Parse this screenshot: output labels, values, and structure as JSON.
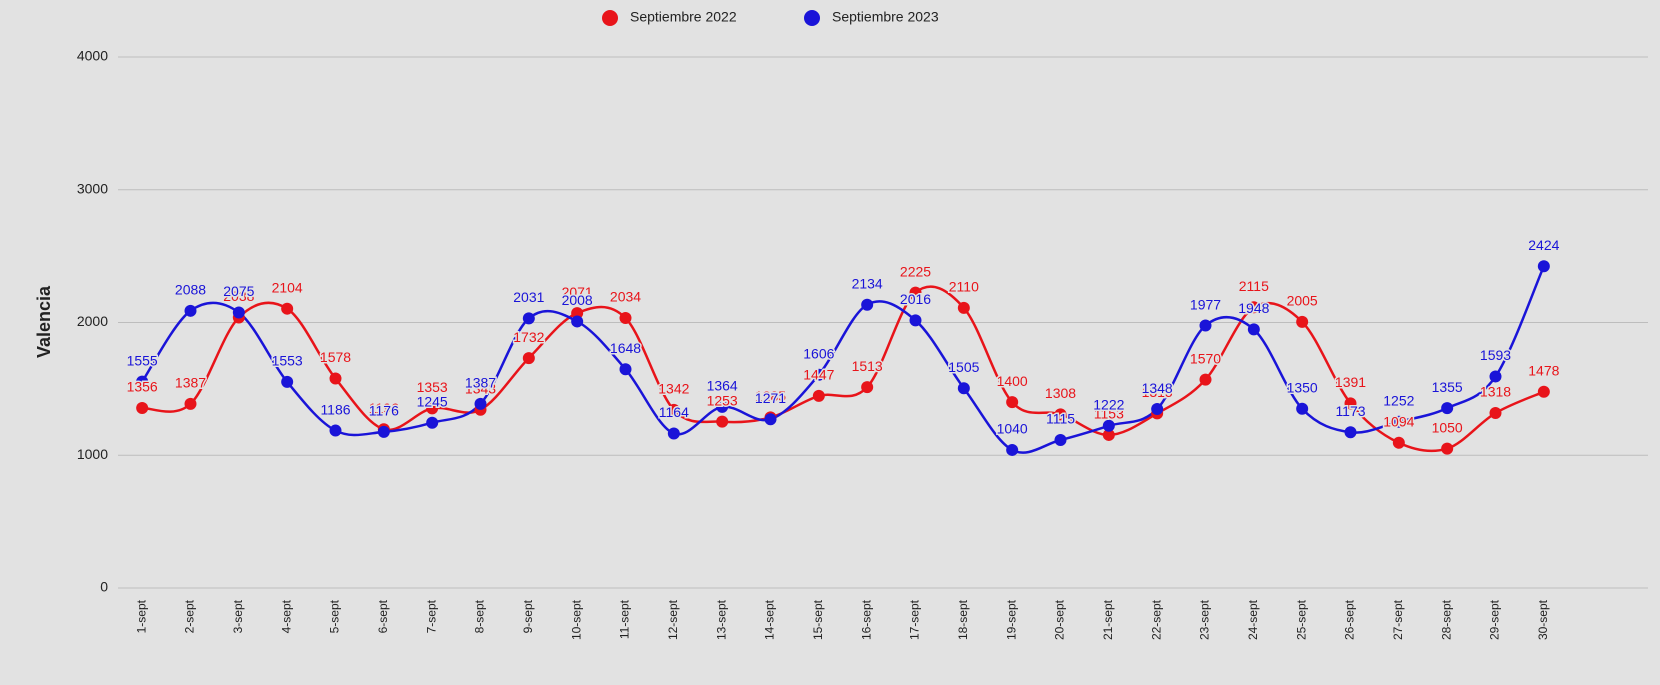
{
  "chart_data": {
    "type": "line",
    "y_label": "Valencia",
    "categories": [
      "1-sept",
      "2-sept",
      "3-sept",
      "4-sept",
      "5-sept",
      "6-sept",
      "7-sept",
      "8-sept",
      "9-sept",
      "10-sept",
      "11-sept",
      "12-sept",
      "13-sept",
      "14-sept",
      "15-sept",
      "16-sept",
      "17-sept",
      "18-sept",
      "19-sept",
      "20-sept",
      "21-sept",
      "22-sept",
      "23-sept",
      "24-sept",
      "25-sept",
      "26-sept",
      "27-sept",
      "28-sept",
      "29-sept",
      "30-sept"
    ],
    "series": [
      {
        "name": "Septiembre 2022",
        "color": "#e8141a",
        "values": [
          1356,
          1387,
          2038,
          2104,
          1578,
          1196,
          1353,
          1343,
          1732,
          2071,
          2034,
          1342,
          1253,
          1285,
          1447,
          1513,
          2225,
          2110,
          1400,
          1308,
          1153,
          1315,
          1570,
          2115,
          2005,
          1391,
          1094,
          1050,
          1318,
          1478
        ]
      },
      {
        "name": "Septiembre 2023",
        "color": "#1a14d8",
        "values": [
          1555,
          2088,
          2075,
          1553,
          1186,
          1176,
          1245,
          1387,
          2031,
          2008,
          1648,
          1164,
          1364,
          1271,
          1606,
          2134,
          2016,
          1505,
          1040,
          1115,
          1222,
          1348,
          1977,
          1948,
          1350,
          1173,
          1252,
          1355,
          1593,
          2424
        ]
      }
    ],
    "ylim": [
      0,
      4000
    ],
    "yticks": [
      0,
      1000,
      2000,
      3000,
      4000
    ],
    "grid": true
  }
}
